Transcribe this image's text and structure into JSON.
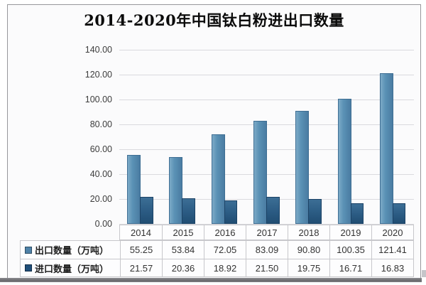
{
  "title": "2014-2020年中国钛白粉进出口数量",
  "chart_data": {
    "type": "bar",
    "title": "2014-2020年中国钛白粉进出口数量",
    "categories": [
      "2014",
      "2015",
      "2016",
      "2017",
      "2018",
      "2019",
      "2020"
    ],
    "series": [
      {
        "key": "export",
        "name": "出口数量（万吨）",
        "values": [
          55.25,
          53.84,
          72.05,
          83.09,
          90.8,
          100.35,
          121.41
        ],
        "color": "#4f82a8"
      },
      {
        "key": "import",
        "name": "进口数量（万吨）",
        "values": [
          21.57,
          20.36,
          18.92,
          21.5,
          19.75,
          16.71,
          16.83
        ],
        "color": "#1f4e79"
      }
    ],
    "xlabel": "",
    "ylabel": "",
    "ylim": [
      0,
      140
    ],
    "ytick_step": 20,
    "ytick_labels": [
      "0.00",
      "20.00",
      "40.00",
      "60.00",
      "80.00",
      "100.00",
      "120.00",
      "140.00"
    ],
    "grid": true,
    "legend_position": "table-left"
  },
  "table": {
    "header_years": [
      "2014",
      "2015",
      "2016",
      "2017",
      "2018",
      "2019",
      "2020"
    ],
    "rows": [
      {
        "label": "出口数量（万吨）",
        "marker_color": "#4f82a8",
        "values": [
          "55.25",
          "53.84",
          "72.05",
          "83.09",
          "90.80",
          "100.35",
          "121.41"
        ]
      },
      {
        "label": "进口数量（万吨）",
        "marker_color": "#1f4e79",
        "values": [
          "21.57",
          "20.36",
          "18.92",
          "21.50",
          "19.75",
          "16.71",
          "16.83"
        ]
      }
    ]
  },
  "colors": {
    "export_bar": "#4f82a8",
    "import_bar": "#1f4e79",
    "gridline": "#dadade",
    "frame_border": "#97979b"
  }
}
